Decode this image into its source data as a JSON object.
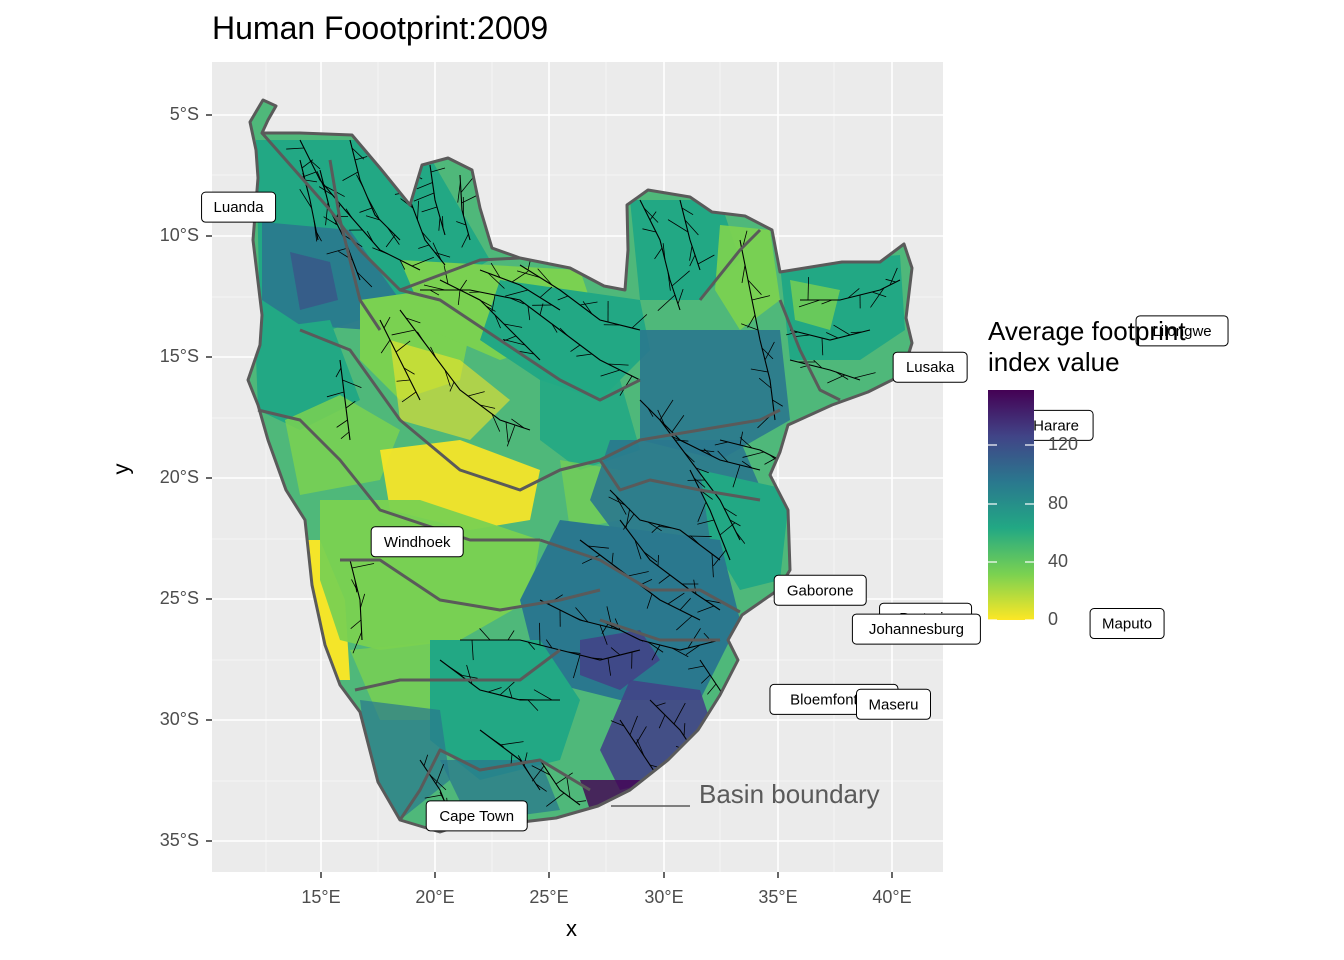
{
  "title": "Human Foootprint:2009",
  "x_axis": {
    "label": "x",
    "ticks": [
      "15°E",
      "20°E",
      "25°E",
      "30°E",
      "35°E",
      "40°E"
    ]
  },
  "y_axis": {
    "label": "y",
    "ticks": [
      "5°S",
      "10°S",
      "15°S",
      "20°S",
      "25°S",
      "30°S",
      "35°S"
    ]
  },
  "legend": {
    "title_line1": "Average footprint",
    "title_line2": "index value",
    "ticks": [
      "0",
      "40",
      "80",
      "120"
    ],
    "colors": [
      "#fde725",
      "#7ad151",
      "#22a884",
      "#2a788e",
      "#414487",
      "#440154"
    ]
  },
  "annotation": "Basin boundary",
  "cities": [
    {
      "name": "Luanda",
      "lon": 13.2,
      "lat": -8.8
    },
    {
      "name": "Lusaka",
      "lon": 28.3,
      "lat": -15.4
    },
    {
      "name": "Lilongwe",
      "lon": 33.8,
      "lat": -13.9
    },
    {
      "name": "Harare",
      "lon": 31.05,
      "lat": -17.8
    },
    {
      "name": "Windhoek",
      "lon": 17.1,
      "lat": -22.6
    },
    {
      "name": "Gaborone",
      "lon": 25.9,
      "lat": -24.6
    },
    {
      "name": "Pretoria",
      "lon": 28.2,
      "lat": -25.75
    },
    {
      "name": "Johannesburg",
      "lon": 28.0,
      "lat": -26.2
    },
    {
      "name": "Maputo",
      "lon": 32.6,
      "lat": -25.97
    },
    {
      "name": "Bloemfontein",
      "lon": 26.2,
      "lat": -29.1
    },
    {
      "name": "Maseru",
      "lon": 27.5,
      "lat": -29.3
    },
    {
      "name": "Cape Town",
      "lon": 18.4,
      "lat": -33.9
    }
  ],
  "colors": {
    "panel_background": "#ebebeb",
    "grid": "#ffffff",
    "basin_boundary": "#5a5a5a",
    "rivers": "#000000"
  }
}
